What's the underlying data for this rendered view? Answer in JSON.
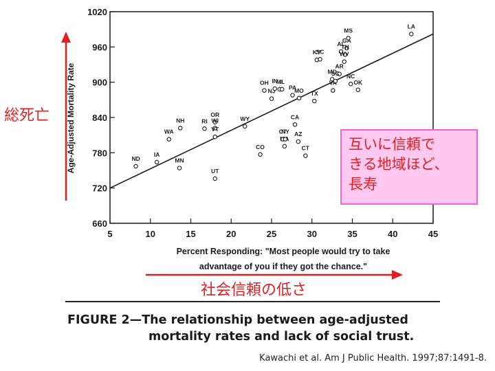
{
  "chart_data": {
    "type": "scatter",
    "xlabel_line1": "Percent Responding: \"Most people would try to take",
    "xlabel_line2": "advantage of you if they got the chance.\"",
    "ylabel": "Age-Adjusted Mortality Rate",
    "xlim": [
      5,
      45
    ],
    "ylim": [
      660,
      1020
    ],
    "xticks": [
      5,
      10,
      15,
      20,
      25,
      30,
      35,
      40,
      45
    ],
    "yticks": [
      660,
      720,
      780,
      840,
      900,
      960,
      1020
    ],
    "trendline": {
      "x": [
        5,
        45
      ],
      "y": [
        720,
        982
      ]
    },
    "points": [
      {
        "label": "ND",
        "x": 8.2,
        "y": 757
      },
      {
        "label": "IA",
        "x": 10.8,
        "y": 764
      },
      {
        "label": "WA",
        "x": 12.3,
        "y": 803
      },
      {
        "label": "NH",
        "x": 13.7,
        "y": 822
      },
      {
        "label": "MN",
        "x": 13.6,
        "y": 754
      },
      {
        "label": "RI",
        "x": 16.7,
        "y": 821
      },
      {
        "label": "OR",
        "x": 18.0,
        "y": 832
      },
      {
        "label": "WI",
        "x": 18.0,
        "y": 822
      },
      {
        "label": "VT",
        "x": 18.0,
        "y": 807
      },
      {
        "label": "UT",
        "x": 18.0,
        "y": 736
      },
      {
        "label": "WY",
        "x": 21.7,
        "y": 825
      },
      {
        "label": "CO",
        "x": 23.6,
        "y": 777
      },
      {
        "label": "OH",
        "x": 24.1,
        "y": 886
      },
      {
        "label": "NJ",
        "x": 25.0,
        "y": 872
      },
      {
        "label": "IN",
        "x": 25.4,
        "y": 889
      },
      {
        "label": "MI",
        "x": 26.0,
        "y": 888
      },
      {
        "label": "IL",
        "x": 26.3,
        "y": 888
      },
      {
        "label": "PA",
        "x": 27.6,
        "y": 878
      },
      {
        "label": "MO",
        "x": 28.4,
        "y": 873
      },
      {
        "label": "MA",
        "x": 26.6,
        "y": 791
      },
      {
        "label": "CT",
        "x": 26.4,
        "y": 803
      },
      {
        "label": "NY",
        "x": 26.7,
        "y": 803
      },
      {
        "label": "CA",
        "x": 27.9,
        "y": 828
      },
      {
        "label": "AZ",
        "x": 28.3,
        "y": 799
      },
      {
        "label": "CT",
        "x": 29.2,
        "y": 775
      },
      {
        "label": "TX",
        "x": 30.3,
        "y": 868
      },
      {
        "label": "KY",
        "x": 30.6,
        "y": 938
      },
      {
        "label": "SC",
        "x": 31.0,
        "y": 939
      },
      {
        "label": "AL",
        "x": 33.6,
        "y": 952
      },
      {
        "label": "GA",
        "x": 34.3,
        "y": 958
      },
      {
        "label": "TN",
        "x": 34.1,
        "y": 947
      },
      {
        "label": "MS",
        "x": 34.5,
        "y": 975
      },
      {
        "label": "WV",
        "x": 34.0,
        "y": 935
      },
      {
        "label": "AR",
        "x": 33.4,
        "y": 914
      },
      {
        "label": "MD",
        "x": 32.5,
        "y": 905
      },
      {
        "label": "VA",
        "x": 32.6,
        "y": 886
      },
      {
        "label": "SC",
        "x": 32.9,
        "y": 902
      },
      {
        "label": "NC",
        "x": 34.8,
        "y": 897
      },
      {
        "label": "OK",
        "x": 35.7,
        "y": 887
      },
      {
        "label": "LA",
        "x": 42.3,
        "y": 982
      }
    ]
  },
  "annotations": {
    "y_jp": "総死亡",
    "x_jp": "社会信頼の低さ",
    "callout_lines": [
      "互いに信頼で",
      "きる地域ほど、",
      "長寿"
    ]
  },
  "caption": {
    "line1": "FIGURE 2—The relationship between age-adjusted",
    "line2": "mortality rates and lack of social trust."
  },
  "citation": "Kawachi et al. Am J Public Health. 1997;87:1491-8.",
  "colors": {
    "accent_red": "#e02020",
    "callout_bg": "#ffc8f0",
    "callout_border": "#ee66cc",
    "ink": "#1a1a1a"
  }
}
